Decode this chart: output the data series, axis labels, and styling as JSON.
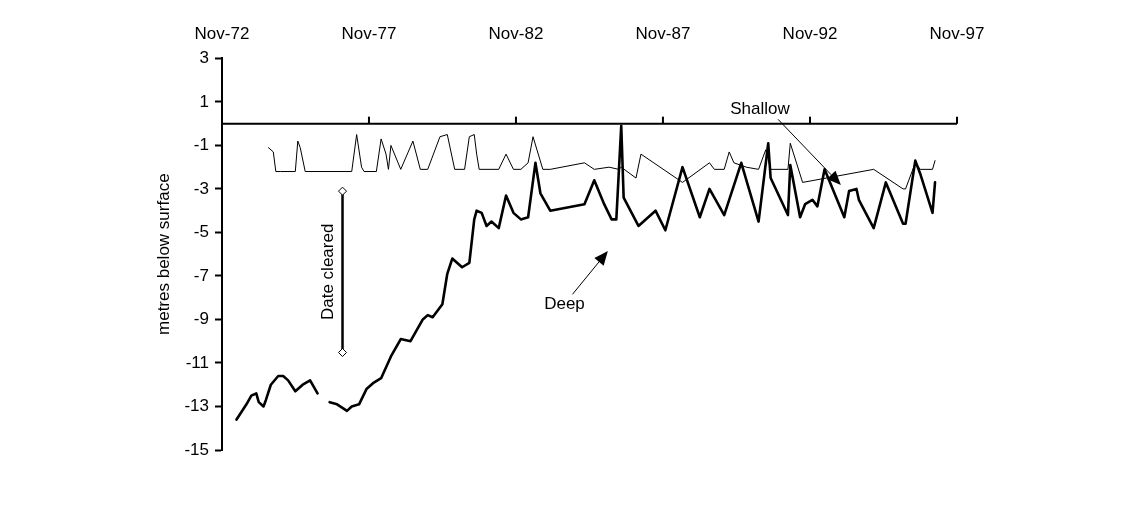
{
  "chart_data": {
    "type": "line",
    "ylabel": "metres below surface",
    "xlim": [
      "1972-11",
      "1997-11"
    ],
    "xticks": [
      {
        "value": "1972-11",
        "label": "Nov-72"
      },
      {
        "value": "1977-11",
        "label": "Nov-77"
      },
      {
        "value": "1982-11",
        "label": "Nov-82"
      },
      {
        "value": "1987-11",
        "label": "Nov-87"
      },
      {
        "value": "1992-11",
        "label": "Nov-92"
      },
      {
        "value": "1997-11",
        "label": "Nov-97"
      }
    ],
    "ylim": [
      -15,
      3
    ],
    "yticks": [
      3,
      1,
      -1,
      -3,
      -5,
      -7,
      -9,
      -11,
      -13,
      -15
    ],
    "grid": false,
    "legend": false,
    "marker": "none",
    "line_style": "solid",
    "annotations": [
      "Date cleared",
      "Shallow",
      "Deep"
    ],
    "series": [
      {
        "color": "#000000",
        "x": [
          "1974-06",
          "1974-08",
          "1974-09",
          "1974-11",
          "1975-05",
          "1975-06",
          "1975-07",
          "1975-09",
          "1977-04",
          "1977-06",
          "1977-08",
          "1977-09",
          "1978-02",
          "1978-04",
          "1978-06",
          "1978-07",
          "1978-08",
          "1978-12",
          "1979-05",
          "1979-08",
          "1979-11",
          "1980-04",
          "1980-07",
          "1980-10",
          "1981-02",
          "1981-04",
          "1981-06",
          "1981-07",
          "1981-08",
          "1982-04",
          "1982-07",
          "1982-10",
          "1983-01",
          "1983-04",
          "1983-06",
          "1983-10",
          "1984-01",
          "1985-03",
          "1985-07",
          "1986-01",
          "1986-05",
          "1986-06",
          "1986-12",
          "1987-02",
          "1988-07",
          "1989-06",
          "1989-08",
          "1989-12",
          "1990-02",
          "1990-04",
          "1990-09",
          "1991-02",
          "1991-05",
          "1991-07",
          "1992-02",
          "1992-03",
          "1992-08",
          "1995-01",
          "1996-01",
          "1996-02",
          "1996-06",
          "1996-08",
          "1997-01",
          "1997-02"
        ],
        "values": [
          -1.1,
          -1.3,
          -2.2,
          -2.2,
          -2.2,
          -0.8,
          -1.1,
          -2.2,
          -2.2,
          -0.5,
          -2.0,
          -2.2,
          -2.2,
          -0.7,
          -1.4,
          -2.1,
          -1.0,
          -2.1,
          -0.8,
          -2.1,
          -2.1,
          -0.6,
          -0.5,
          -2.1,
          -2.1,
          -0.6,
          -0.5,
          -1.4,
          -2.1,
          -2.1,
          -1.4,
          -2.1,
          -2.1,
          -1.8,
          -0.6,
          -2.1,
          -2.1,
          -1.8,
          -2.1,
          -2.0,
          -2.1,
          -2.0,
          -2.5,
          -1.4,
          -2.7,
          -1.8,
          -2.1,
          -2.1,
          -1.3,
          -1.8,
          -2.0,
          -2.1,
          -1.2,
          -2.1,
          -2.1,
          -0.9,
          -2.7,
          -2.1,
          -3.0,
          -3.0,
          -1.8,
          -2.1,
          -2.1,
          -1.7
        ]
      },
      {
        "color": "#000000",
        "x": [
          "1973-05",
          "1973-09",
          "1973-11",
          "1974-01",
          "1974-02",
          "1974-04",
          "1974-05",
          "1974-07",
          "1974-10",
          "1974-12",
          "1975-02",
          "1975-05",
          "1975-08",
          "1975-11",
          "1976-02",
          "1976-05",
          "1976-07",
          "1976-10",
          "1977-02",
          "1977-04",
          "1977-07",
          "1977-10",
          "1978-01",
          "1978-04",
          "1978-08",
          "1978-12",
          "1979-04",
          "1979-09",
          "1979-11",
          "1980-01",
          "1980-05",
          "1980-07",
          "1980-09",
          "1981-01",
          "1981-04",
          "1981-06",
          "1981-07",
          "1981-09",
          "1981-11",
          "1982-01",
          "1982-04",
          "1982-07",
          "1982-10",
          "1983-01",
          "1983-04",
          "1983-07",
          "1983-09",
          "1984-01",
          "1985-03",
          "1985-07",
          "1985-11",
          "1986-02",
          "1986-04",
          "1986-06",
          "1986-07",
          "1987-01",
          "1987-08",
          "1987-12",
          "1988-07",
          "1989-02",
          "1989-06",
          "1989-12",
          "1990-07",
          "1991-02",
          "1991-06",
          "1991-07",
          "1992-02",
          "1992-03",
          "1992-07",
          "1992-09",
          "1992-12",
          "1993-02",
          "1993-05",
          "1994-01",
          "1994-03",
          "1994-06",
          "1994-07",
          "1995-01",
          "1995-06",
          "1996-01",
          "1996-02",
          "1996-06",
          "1996-08",
          "1997-01",
          "1997-02"
        ],
        "values": [
          -13.6,
          -12.9,
          -12.5,
          -12.4,
          -12.8,
          -13.0,
          -12.7,
          -12.0,
          -11.6,
          -11.6,
          -11.8,
          -12.3,
          -12.0,
          -11.8,
          -12.4,
          null,
          -12.8,
          -12.9,
          -13.2,
          -13.0,
          -12.9,
          -12.2,
          -11.9,
          -11.7,
          -10.7,
          -9.9,
          -10.0,
          -9.0,
          -8.8,
          -8.9,
          -8.3,
          -6.9,
          -6.2,
          -6.6,
          -6.4,
          -4.4,
          -4.0,
          -4.1,
          -4.7,
          -4.5,
          -4.8,
          -3.3,
          -4.1,
          -4.4,
          -4.3,
          -1.8,
          -3.2,
          -4.0,
          -3.7,
          -2.6,
          -3.7,
          -4.4,
          -4.4,
          -0.1,
          -3.4,
          -4.7,
          -4.0,
          -4.9,
          -2.0,
          -4.3,
          -3.0,
          -4.2,
          -1.8,
          -4.5,
          -0.9,
          -2.5,
          -4.2,
          -1.9,
          -4.3,
          -3.7,
          -3.5,
          -3.8,
          -2.1,
          -4.3,
          -3.1,
          -3.0,
          -3.5,
          -4.8,
          -2.7,
          -4.6,
          -4.6,
          -1.7,
          -2.3,
          -4.1,
          -2.7
        ]
      }
    ]
  }
}
